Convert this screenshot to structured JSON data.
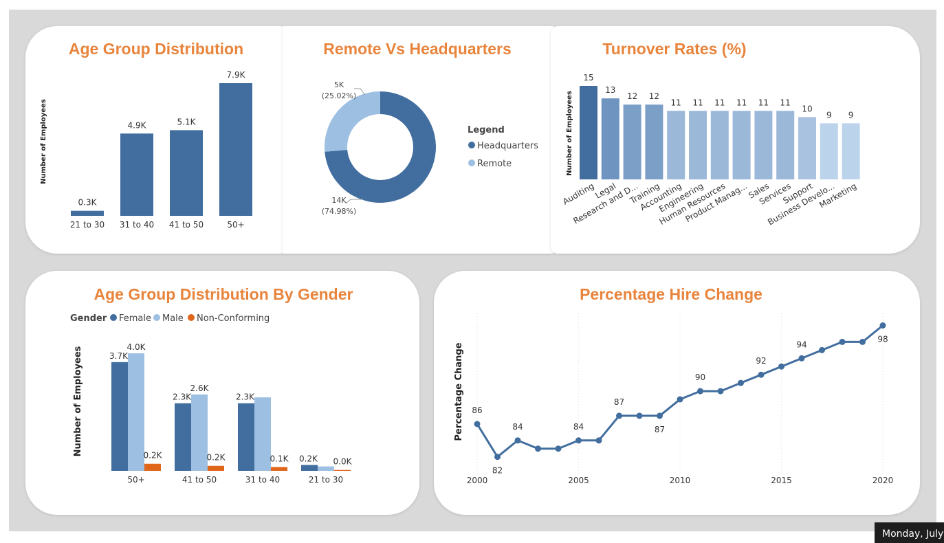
{
  "colors": {
    "title": "#e8843c",
    "bar_primary": "#416e9e",
    "bar_light": "#9dbfe2",
    "accent_orange": "#e0661c",
    "canvas_bg": "#d9d9d9",
    "turnover_shades": [
      "#416e9e",
      "#6e94bf",
      "#7c9fc7",
      "#7c9fc7",
      "#9bb8d9",
      "#9bb8d9",
      "#9bb8d9",
      "#9bb8d9",
      "#9bb8d9",
      "#9bb8d9",
      "#a8c2e0",
      "#bcd3ec",
      "#bcd3ec"
    ]
  },
  "taskbar": {
    "datetime": "Monday, July"
  },
  "chart_data": [
    {
      "id": "age",
      "type": "bar",
      "title": "Age Group Distribution",
      "ylabel": "Number of Employees",
      "categories": [
        "21 to 30",
        "31 to 40",
        "41 to 50",
        "50+"
      ],
      "values": [
        300,
        4900,
        5100,
        7900
      ],
      "data_labels": [
        "0.3K",
        "4.9K",
        "5.1K",
        "7.9K"
      ],
      "ylim": [
        0,
        7900
      ],
      "grid": false
    },
    {
      "id": "remote",
      "type": "pie",
      "title": "Remote Vs Headquarters",
      "legend_title": "Legend",
      "legend_position": "right",
      "slices": [
        {
          "name": "Headquarters",
          "value": 14000,
          "percent": 74.98,
          "value_label": "14K",
          "pct_label": "(74.98%)"
        },
        {
          "name": "Remote",
          "value": 5000,
          "percent": 25.02,
          "value_label": "5K",
          "pct_label": "(25.02%)"
        }
      ]
    },
    {
      "id": "turnover",
      "type": "bar",
      "title": "Turnover Rates (%)",
      "ylabel": "Number of Employees",
      "categories": [
        "Auditing",
        "Legal",
        "Research and D...",
        "Training",
        "Accounting",
        "Engineering",
        "Human Resources",
        "Product Manag...",
        "Sales",
        "Services",
        "Support",
        "Business Develo...",
        "Marketing"
      ],
      "values": [
        15,
        13,
        12,
        12,
        11,
        11,
        11,
        11,
        11,
        11,
        10,
        9,
        9
      ],
      "data_labels": [
        "15",
        "13",
        "12",
        "12",
        "11",
        "11",
        "11",
        "11",
        "11",
        "11",
        "10",
        "9",
        "9"
      ],
      "ylim": [
        0,
        15
      ],
      "grid": false
    },
    {
      "id": "gender",
      "type": "bar",
      "title": "Age Group Distribution By Gender",
      "ylabel": "Number of Employees",
      "legend_title": "Gender",
      "legend_position": "top-left",
      "categories": [
        "50+",
        "41 to 50",
        "31 to 40",
        "21 to 30"
      ],
      "series": [
        {
          "name": "Female",
          "values": [
            3700,
            2300,
            2300,
            200
          ],
          "labels": [
            "3.7K",
            "2.3K",
            "2.3K",
            "0.2K"
          ]
        },
        {
          "name": "Male",
          "values": [
            4000,
            2600,
            2500,
            150
          ],
          "labels": [
            "4.0K",
            "2.6K",
            "",
            ""
          ]
        },
        {
          "name": "Non-Conforming",
          "values": [
            240,
            170,
            130,
            30
          ],
          "labels": [
            "0.2K",
            "0.2K",
            "0.1K",
            "0.0K"
          ]
        }
      ],
      "ylim": [
        0,
        4000
      ],
      "grid": false
    },
    {
      "id": "hire",
      "type": "line",
      "title": "Percentage Hire Change",
      "ylabel": "Percentage Change",
      "x": [
        2000,
        2001,
        2002,
        2003,
        2004,
        2005,
        2006,
        2007,
        2008,
        2009,
        2010,
        2011,
        2012,
        2013,
        2014,
        2015,
        2016,
        2017,
        2018,
        2019,
        2020
      ],
      "y": [
        86,
        82,
        84,
        83,
        83,
        84,
        84,
        87,
        87,
        87,
        89,
        90,
        90,
        91,
        92,
        93,
        94,
        95,
        96,
        96,
        98
      ],
      "point_labels": [
        "86",
        "82",
        "84",
        "",
        "",
        "84",
        "",
        "87",
        "",
        "87",
        "",
        "90",
        "",
        "",
        "92",
        "",
        "94",
        "",
        "",
        "",
        "98"
      ],
      "xticks": [
        "2000",
        "2005",
        "2010",
        "2015",
        "2020"
      ],
      "xlim": [
        2000,
        2020
      ],
      "ylim": [
        80.8,
        99.8
      ],
      "grid": true
    }
  ]
}
